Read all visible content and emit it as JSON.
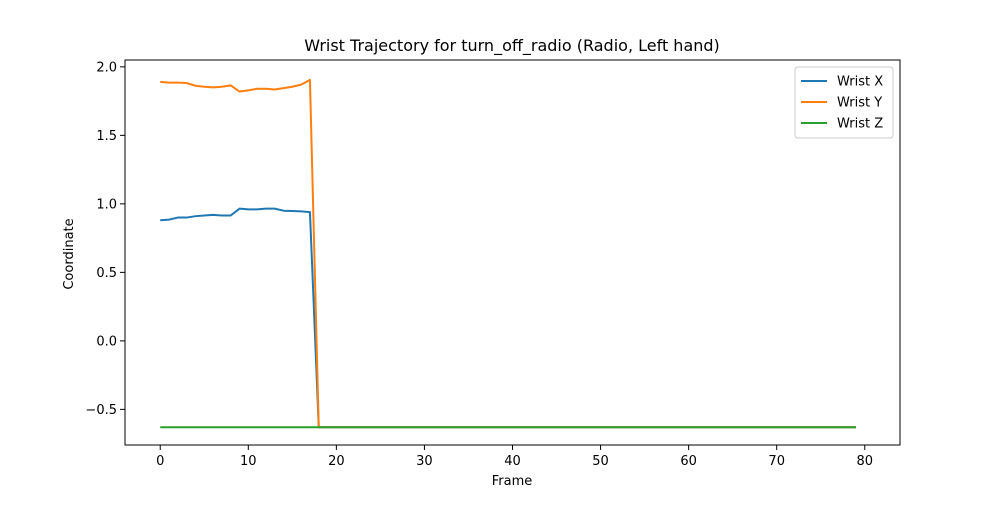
{
  "chart_data": {
    "type": "line",
    "title": "Wrist Trajectory for turn_off_radio (Radio, Left hand)",
    "xlabel": "Frame",
    "ylabel": "Coordinate",
    "xlim": [
      -4,
      84
    ],
    "ylim": [
      -0.76,
      2.05
    ],
    "xticks": [
      0,
      10,
      20,
      30,
      40,
      50,
      60,
      70,
      80
    ],
    "yticks": [
      -0.5,
      0.0,
      0.5,
      1.0,
      1.5,
      2.0
    ],
    "ytick_labels": [
      "−0.5",
      "0.0",
      "0.5",
      "1.0",
      "1.5",
      "2.0"
    ],
    "grid": false,
    "legend_position": "top-right",
    "series": [
      {
        "name": "Wrist X",
        "color": "#1f77b4",
        "x": [
          0,
          1,
          2,
          3,
          4,
          5,
          6,
          7,
          8,
          9,
          10,
          11,
          12,
          13,
          14,
          15,
          16,
          17,
          18,
          79
        ],
        "y": [
          0.88,
          0.885,
          0.9,
          0.9,
          0.91,
          0.915,
          0.92,
          0.915,
          0.915,
          0.965,
          0.96,
          0.96,
          0.965,
          0.965,
          0.95,
          0.948,
          0.945,
          0.94,
          -0.63,
          -0.63
        ]
      },
      {
        "name": "Wrist Y",
        "color": "#ff7f0e",
        "x": [
          0,
          1,
          2,
          3,
          4,
          5,
          6,
          7,
          8,
          9,
          10,
          11,
          12,
          13,
          14,
          15,
          16,
          17,
          18,
          79
        ],
        "y": [
          1.89,
          1.885,
          1.885,
          1.882,
          1.862,
          1.855,
          1.85,
          1.855,
          1.865,
          1.82,
          1.828,
          1.84,
          1.84,
          1.835,
          1.845,
          1.855,
          1.87,
          1.905,
          -0.63,
          -0.63
        ]
      },
      {
        "name": "Wrist Z",
        "color": "#2ca02c",
        "x": [
          0,
          79
        ],
        "y": [
          -0.63,
          -0.63
        ]
      }
    ]
  }
}
